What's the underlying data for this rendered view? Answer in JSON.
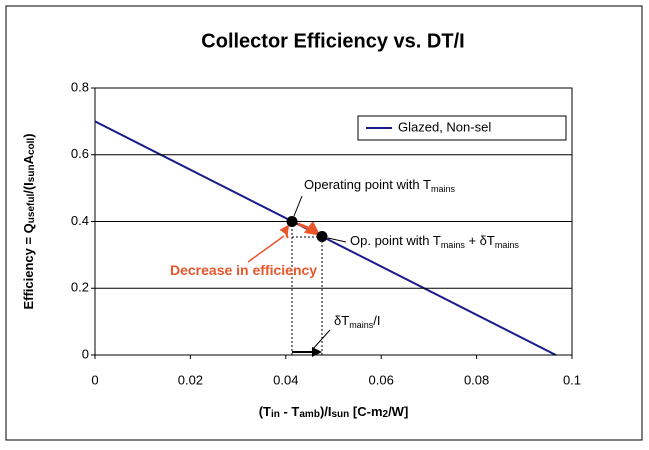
{
  "chart_data": {
    "type": "line",
    "title": "Collector Efficiency vs. DT/I",
    "ylabel": [
      {
        "text": "Efficiency = Q"
      },
      {
        "text": "useful",
        "sub": true
      },
      {
        "text": "/(I"
      },
      {
        "text": "sun",
        "sub": true
      },
      {
        "text": "A"
      },
      {
        "text": "coll",
        "sub": true
      },
      {
        "text": ")"
      }
    ],
    "xlabel": [
      {
        "text": "(T"
      },
      {
        "text": "in",
        "sub": true
      },
      {
        "text": " - T"
      },
      {
        "text": "amb",
        "sub": true
      },
      {
        "text": ")/I"
      },
      {
        "text": "sun",
        "sub": true
      },
      {
        "text": " [C-m"
      },
      {
        "text": "2",
        "sub": true
      },
      {
        "text": "/W]"
      }
    ],
    "xlim": [
      0,
      0.1
    ],
    "xticks": [
      0,
      0.02,
      0.04,
      0.06,
      0.08,
      0.1
    ],
    "ylim": [
      0,
      0.8
    ],
    "yticks": [
      0,
      0.2,
      0.4,
      0.6,
      0.8
    ],
    "grid": true,
    "legend": "upper right",
    "series": [
      {
        "name": "Glazed, Non-sel",
        "color": "#1a1a8c",
        "x": [
          0,
          0.0966
        ],
        "values": [
          0.7,
          0
        ]
      }
    ],
    "markers": {
      "color": "#000000",
      "x": [
        0.0413,
        0.0476
      ],
      "values": [
        0.4,
        0.355
      ]
    },
    "annotations": [
      {
        "segments": [
          {
            "text": "Operating point with T"
          },
          {
            "text": "mains",
            "sub": true
          }
        ],
        "color": "#000000"
      },
      {
        "segments": [
          {
            "text": "Op. point with T"
          },
          {
            "text": "mains",
            "sub": true
          },
          {
            "text": " + δT"
          },
          {
            "text": "mains",
            "sub": true
          }
        ],
        "color": "#000000"
      },
      {
        "segments": [
          {
            "text": "Decrease in efficiency"
          }
        ],
        "color": "#e8562a",
        "bold": true
      },
      {
        "segments": [
          {
            "text": "δT"
          },
          {
            "text": "mains",
            "sub": true
          },
          {
            "text": "/I"
          }
        ],
        "color": "#000000"
      }
    ]
  }
}
